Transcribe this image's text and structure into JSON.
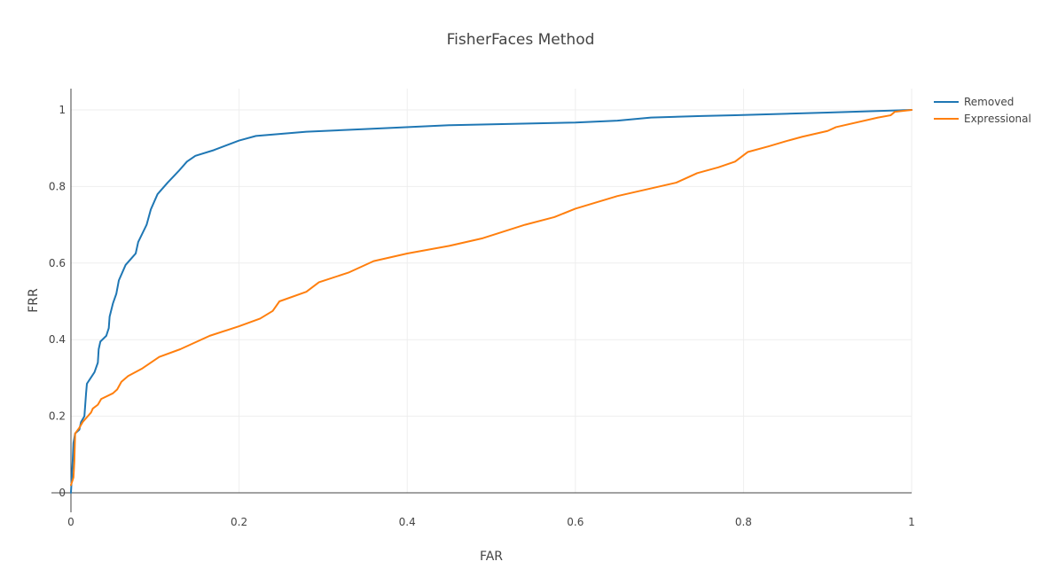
{
  "chart_data": {
    "type": "line",
    "title": "FisherFaces Method",
    "xlabel": "FAR",
    "ylabel": "FRR",
    "xlim": [
      0,
      1
    ],
    "ylim": [
      0,
      1
    ],
    "x_ticks": [
      "0",
      "0.2",
      "0.4",
      "0.6",
      "0.8",
      "1"
    ],
    "y_ticks": [
      "0",
      "0.2",
      "0.4",
      "0.6",
      "0.8",
      "1"
    ],
    "grid": true,
    "legend_position": "top-right",
    "series": [
      {
        "name": "Removed",
        "color": "#1f77b4",
        "points": [
          [
            0,
            0
          ],
          [
            0.002,
            0.08
          ],
          [
            0.003,
            0.13
          ],
          [
            0.005,
            0.155
          ],
          [
            0.01,
            0.165
          ],
          [
            0.012,
            0.185
          ],
          [
            0.016,
            0.2
          ],
          [
            0.017,
            0.23
          ],
          [
            0.018,
            0.26
          ],
          [
            0.019,
            0.285
          ],
          [
            0.022,
            0.295
          ],
          [
            0.028,
            0.315
          ],
          [
            0.032,
            0.34
          ],
          [
            0.033,
            0.375
          ],
          [
            0.035,
            0.395
          ],
          [
            0.042,
            0.41
          ],
          [
            0.045,
            0.43
          ],
          [
            0.046,
            0.46
          ],
          [
            0.05,
            0.495
          ],
          [
            0.054,
            0.52
          ],
          [
            0.057,
            0.555
          ],
          [
            0.062,
            0.58
          ],
          [
            0.065,
            0.595
          ],
          [
            0.073,
            0.615
          ],
          [
            0.077,
            0.625
          ],
          [
            0.08,
            0.655
          ],
          [
            0.09,
            0.7
          ],
          [
            0.095,
            0.74
          ],
          [
            0.103,
            0.78
          ],
          [
            0.115,
            0.81
          ],
          [
            0.128,
            0.84
          ],
          [
            0.138,
            0.865
          ],
          [
            0.148,
            0.88
          ],
          [
            0.17,
            0.895
          ],
          [
            0.2,
            0.92
          ],
          [
            0.22,
            0.932
          ],
          [
            0.28,
            0.943
          ],
          [
            0.35,
            0.95
          ],
          [
            0.45,
            0.96
          ],
          [
            0.6,
            0.967
          ],
          [
            0.65,
            0.972
          ],
          [
            0.69,
            0.98
          ],
          [
            0.75,
            0.984
          ],
          [
            0.79,
            0.986
          ],
          [
            0.85,
            0.99
          ],
          [
            0.9,
            0.993
          ],
          [
            1.0,
            1.0
          ]
        ]
      },
      {
        "name": "Expressional",
        "color": "#ff7f0e",
        "points": [
          [
            0,
            0.02
          ],
          [
            0.003,
            0.04
          ],
          [
            0.004,
            0.08
          ],
          [
            0.005,
            0.155
          ],
          [
            0.01,
            0.17
          ],
          [
            0.014,
            0.185
          ],
          [
            0.02,
            0.2
          ],
          [
            0.024,
            0.21
          ],
          [
            0.026,
            0.22
          ],
          [
            0.032,
            0.23
          ],
          [
            0.036,
            0.245
          ],
          [
            0.05,
            0.26
          ],
          [
            0.055,
            0.27
          ],
          [
            0.06,
            0.29
          ],
          [
            0.068,
            0.305
          ],
          [
            0.085,
            0.325
          ],
          [
            0.105,
            0.355
          ],
          [
            0.13,
            0.375
          ],
          [
            0.15,
            0.395
          ],
          [
            0.165,
            0.41
          ],
          [
            0.2,
            0.435
          ],
          [
            0.225,
            0.455
          ],
          [
            0.24,
            0.475
          ],
          [
            0.248,
            0.5
          ],
          [
            0.28,
            0.525
          ],
          [
            0.295,
            0.55
          ],
          [
            0.33,
            0.575
          ],
          [
            0.36,
            0.605
          ],
          [
            0.4,
            0.625
          ],
          [
            0.45,
            0.645
          ],
          [
            0.49,
            0.665
          ],
          [
            0.54,
            0.7
          ],
          [
            0.575,
            0.72
          ],
          [
            0.6,
            0.742
          ],
          [
            0.65,
            0.775
          ],
          [
            0.72,
            0.81
          ],
          [
            0.745,
            0.835
          ],
          [
            0.77,
            0.85
          ],
          [
            0.79,
            0.865
          ],
          [
            0.805,
            0.89
          ],
          [
            0.83,
            0.905
          ],
          [
            0.85,
            0.918
          ],
          [
            0.87,
            0.93
          ],
          [
            0.9,
            0.945
          ],
          [
            0.91,
            0.955
          ],
          [
            0.96,
            0.98
          ],
          [
            0.975,
            0.986
          ],
          [
            0.98,
            0.995
          ],
          [
            1.0,
            1.0
          ]
        ]
      }
    ]
  }
}
